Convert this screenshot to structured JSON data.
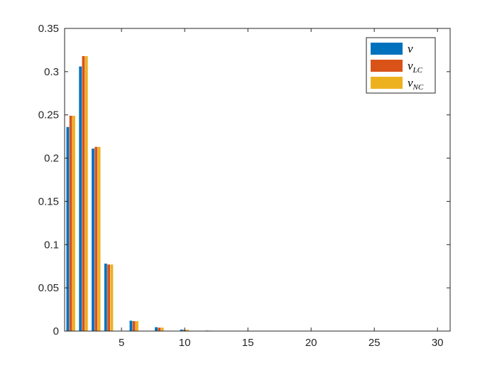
{
  "chart_data": {
    "type": "bar",
    "title": "",
    "xlabel": "",
    "ylabel": "",
    "xlim": [
      0.5,
      31
    ],
    "ylim": [
      0,
      0.35
    ],
    "xticks": [
      5,
      10,
      15,
      20,
      25,
      30
    ],
    "yticks": [
      0,
      0.05,
      0.1,
      0.15,
      0.2,
      0.25,
      0.3,
      0.35
    ],
    "xtick_labels": [
      "5",
      "10",
      "15",
      "20",
      "25",
      "30"
    ],
    "ytick_labels": [
      "0",
      "0.05",
      "0.1",
      "0.15",
      "0.2",
      "0.25",
      "0.3",
      "0.35"
    ],
    "grid": false,
    "legend_position": "top-right",
    "x": [
      1,
      2,
      3,
      4,
      5,
      6,
      7,
      8,
      9,
      10,
      11,
      12,
      13,
      14,
      15,
      16,
      17,
      18,
      19,
      20,
      21,
      22,
      23,
      24,
      25,
      26,
      27,
      28,
      29,
      30
    ],
    "series": [
      {
        "name": "v",
        "legend_main": "v",
        "legend_sub": "",
        "color": "#0072BD",
        "values": [
          0.236,
          0.306,
          0.211,
          0.078,
          0.0,
          0.012,
          0.0,
          0.0045,
          0.0,
          0.0018,
          0.0,
          0.0006,
          0,
          0,
          0,
          0,
          0,
          0,
          0,
          0,
          0,
          0,
          0,
          0,
          0,
          0,
          0,
          0,
          0,
          0
        ]
      },
      {
        "name": "v_LC",
        "legend_main": "v",
        "legend_sub": "LC",
        "color": "#D95319",
        "values": [
          0.249,
          0.318,
          0.213,
          0.077,
          0.0,
          0.0115,
          0.0,
          0.004,
          0.0,
          0.0015,
          0.0,
          0.0005,
          0,
          0,
          0,
          0,
          0,
          0,
          0,
          0,
          0,
          0,
          0,
          0,
          0,
          0,
          0,
          0,
          0,
          0
        ]
      },
      {
        "name": "v_NC",
        "legend_main": "v",
        "legend_sub": "NC",
        "color": "#EDB120",
        "values": [
          0.249,
          0.318,
          0.213,
          0.077,
          0.0,
          0.0115,
          0.0,
          0.004,
          0.0,
          0.0015,
          0.0,
          0.0005,
          0,
          0,
          0,
          0,
          0,
          0,
          0,
          0,
          0,
          0,
          0,
          0,
          0,
          0,
          0,
          0,
          0,
          0
        ]
      }
    ]
  }
}
